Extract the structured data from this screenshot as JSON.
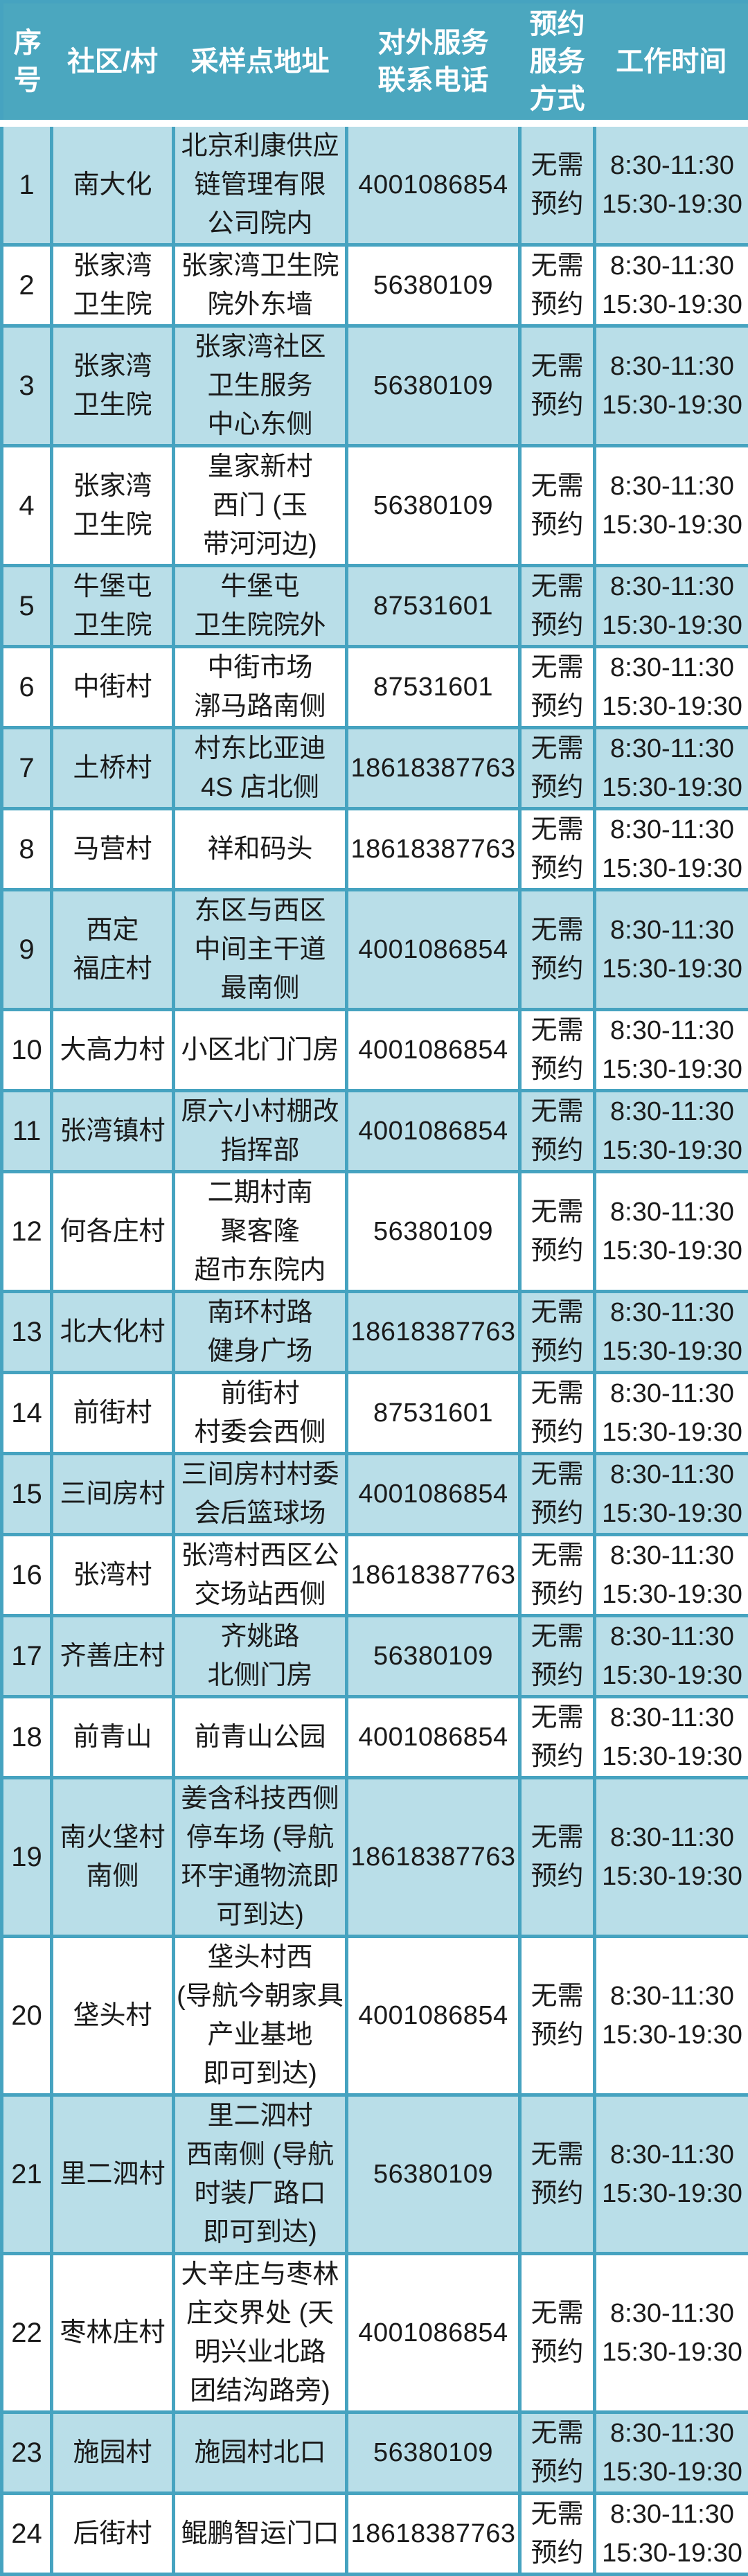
{
  "colors": {
    "header_bg": "#4BA7BF",
    "grid_line": "#46A3C0",
    "row_alt_bg": "#B9DEE8",
    "header_text": "#FFFFFF",
    "body_text": "#1A1A1A"
  },
  "table": {
    "columns": [
      {
        "key": "seq",
        "label": "序\n号"
      },
      {
        "key": "village",
        "label": "社区/村"
      },
      {
        "key": "address",
        "label": "采样点地址"
      },
      {
        "key": "phone",
        "label": "对外服务\n联系电话"
      },
      {
        "key": "booking",
        "label": "预约\n服务\n方式"
      },
      {
        "key": "hours",
        "label": "工作时间"
      }
    ],
    "booking_method": "无需\n预约",
    "working_hours": "8:30-11:30\n15:30-19:30",
    "rows": [
      {
        "seq": "1",
        "village": "南大化",
        "address": "北京利康供应\n链管理有限\n公司院内",
        "phone": "4001086854"
      },
      {
        "seq": "2",
        "village": "张家湾\n卫生院",
        "address": "张家湾卫生院\n院外东墙",
        "phone": "56380109"
      },
      {
        "seq": "3",
        "village": "张家湾\n卫生院",
        "address": "张家湾社区\n卫生服务\n中心东侧",
        "phone": "56380109"
      },
      {
        "seq": "4",
        "village": "张家湾\n卫生院",
        "address": "皇家新村\n西门 (玉\n带河河边)",
        "phone": "56380109"
      },
      {
        "seq": "5",
        "village": "牛堡屯\n卫生院",
        "address": "牛堡屯\n卫生院院外",
        "phone": "87531601"
      },
      {
        "seq": "6",
        "village": "中街村",
        "address": "中街市场\n漷马路南侧",
        "phone": "87531601"
      },
      {
        "seq": "7",
        "village": "土桥村",
        "address": "村东比亚迪\n4S 店北侧",
        "phone": "18618387763"
      },
      {
        "seq": "8",
        "village": "马营村",
        "address": "祥和码头",
        "phone": "18618387763"
      },
      {
        "seq": "9",
        "village": "西定\n福庄村",
        "address": "东区与西区\n中间主干道\n最南侧",
        "phone": "4001086854"
      },
      {
        "seq": "10",
        "village": "大高力村",
        "address": "小区北门门房",
        "phone": "4001086854"
      },
      {
        "seq": "11",
        "village": "张湾镇村",
        "address": "原六小村棚改\n指挥部",
        "phone": "4001086854"
      },
      {
        "seq": "12",
        "village": "何各庄村",
        "address": "二期村南\n聚客隆\n超市东院内",
        "phone": "56380109"
      },
      {
        "seq": "13",
        "village": "北大化村",
        "address": "南环村路\n健身广场",
        "phone": "18618387763"
      },
      {
        "seq": "14",
        "village": "前街村",
        "address": "前街村\n村委会西侧",
        "phone": "87531601"
      },
      {
        "seq": "15",
        "village": "三间房村",
        "address": "三间房村村委\n会后篮球场",
        "phone": "4001086854"
      },
      {
        "seq": "16",
        "village": "张湾村",
        "address": "张湾村西区公\n交场站西侧",
        "phone": "18618387763"
      },
      {
        "seq": "17",
        "village": "齐善庄村",
        "address": "齐姚路\n北侧门房",
        "phone": "56380109"
      },
      {
        "seq": "18",
        "village": "前青山",
        "address": "前青山公园",
        "phone": "4001086854"
      },
      {
        "seq": "19",
        "village": "南火垡村\n南侧",
        "address": "姜含科技西侧\n停车场 (导航\n环宇通物流即\n可到达)",
        "phone": "18618387763"
      },
      {
        "seq": "20",
        "village": "垡头村",
        "address": "垡头村西\n(导航今朝家具\n产业基地\n即可到达)",
        "phone": "4001086854"
      },
      {
        "seq": "21",
        "village": "里二泗村",
        "address": "里二泗村\n西南侧 (导航\n时装厂路口\n即可到达)",
        "phone": "56380109"
      },
      {
        "seq": "22",
        "village": "枣林庄村",
        "address": "大辛庄与枣林\n庄交界处 (天\n明兴业北路\n团结沟路旁)",
        "phone": "4001086854"
      },
      {
        "seq": "23",
        "village": "施园村",
        "address": "施园村北口",
        "phone": "56380109"
      },
      {
        "seq": "24",
        "village": "后街村",
        "address": "鲲鹏智运门口",
        "phone": "18618387763"
      }
    ]
  }
}
